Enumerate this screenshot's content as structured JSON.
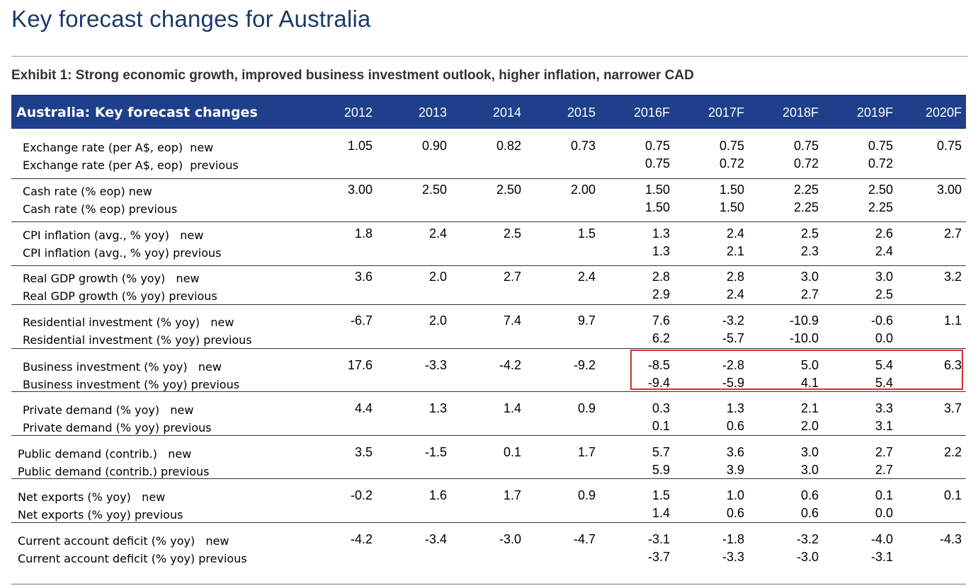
{
  "page_title": "Key forecast changes for Australia",
  "exhibit_title": "Exhibit 1: Strong economic growth, improved business investment outlook, higher inflation, narrower CAD",
  "table": {
    "header_label": "Australia: Key forecast changes",
    "years": [
      "2012",
      "2013",
      "2014",
      "2015",
      "2016F",
      "2017F",
      "2018F",
      "2019F",
      "2020F"
    ],
    "groups": [
      {
        "new_label": "Exchange rate (per A$, eop)  new",
        "prev_label": "Exchange rate (per A$, eop)  previous",
        "new": [
          "1.05",
          "0.90",
          "0.82",
          "0.73",
          "0.75",
          "0.75",
          "0.75",
          "0.75",
          "0.75"
        ],
        "prev": [
          "",
          "",
          "",
          "",
          "0.75",
          "0.72",
          "0.72",
          "0.72",
          ""
        ]
      },
      {
        "new_label": "Cash rate (% eop) new",
        "prev_label": "Cash rate (% eop) previous",
        "new": [
          "3.00",
          "2.50",
          "2.50",
          "2.00",
          "1.50",
          "1.50",
          "2.25",
          "2.50",
          "3.00"
        ],
        "prev": [
          "",
          "",
          "",
          "",
          "1.50",
          "1.50",
          "2.25",
          "2.25",
          ""
        ]
      },
      {
        "new_label": "CPI inflation (avg., % yoy)   new",
        "prev_label": "CPI inflation (avg., % yoy) previous",
        "new": [
          "1.8",
          "2.4",
          "2.5",
          "1.5",
          "1.3",
          "2.4",
          "2.5",
          "2.6",
          "2.7"
        ],
        "prev": [
          "",
          "",
          "",
          "",
          "1.3",
          "2.1",
          "2.3",
          "2.4",
          ""
        ]
      },
      {
        "new_label": "Real GDP growth (% yoy)   new",
        "prev_label": "Real GDP growth (% yoy) previous",
        "new": [
          "3.6",
          "2.0",
          "2.7",
          "2.4",
          "2.8",
          "2.8",
          "3.0",
          "3.0",
          "3.2"
        ],
        "prev": [
          "",
          "",
          "",
          "",
          "2.9",
          "2.4",
          "2.7",
          "2.5",
          ""
        ]
      },
      {
        "new_label": "Residential investment (% yoy)   new",
        "prev_label": "Residential investment (% yoy) previous",
        "new": [
          "-6.7",
          "2.0",
          "7.4",
          "9.7",
          "7.6",
          "-3.2",
          "-10.9",
          "-0.6",
          "1.1"
        ],
        "prev": [
          "",
          "",
          "",
          "",
          "6.2",
          "-5.7",
          "-10.0",
          "0.0",
          ""
        ]
      },
      {
        "new_label": "Business investment (% yoy)   new",
        "prev_label": "Business investment (% yoy) previous",
        "new": [
          "17.6",
          "-3.3",
          "-4.2",
          "-9.2",
          "-8.5",
          "-2.8",
          "5.0",
          "5.4",
          "6.3"
        ],
        "prev": [
          "",
          "",
          "",
          "",
          "-9.4",
          "-5.9",
          "4.1",
          "5.4",
          ""
        ]
      },
      {
        "new_label": "Private demand (% yoy)   new",
        "prev_label": "Private demand (% yoy) previous",
        "new": [
          "4.4",
          "1.3",
          "1.4",
          "0.9",
          "0.3",
          "1.3",
          "2.1",
          "3.3",
          "3.7"
        ],
        "prev": [
          "",
          "",
          "",
          "",
          "0.1",
          "0.6",
          "2.0",
          "3.1",
          ""
        ]
      },
      {
        "new_label": "Public demand (contrib.)   new",
        "prev_label": "Public demand (contrib.) previous",
        "new": [
          "3.5",
          "-1.5",
          "0.1",
          "1.7",
          "5.7",
          "3.6",
          "3.0",
          "2.7",
          "2.2"
        ],
        "prev": [
          "",
          "",
          "",
          "",
          "5.9",
          "3.9",
          "3.0",
          "2.7",
          ""
        ]
      },
      {
        "new_label": "Net exports (% yoy)   new",
        "prev_label": "Net exports (% yoy) previous",
        "new": [
          "-0.2",
          "1.6",
          "1.7",
          "0.9",
          "1.5",
          "1.0",
          "0.6",
          "0.1",
          "0.1"
        ],
        "prev": [
          "",
          "",
          "",
          "",
          "1.4",
          "0.6",
          "0.6",
          "0.0",
          ""
        ]
      },
      {
        "new_label": "Current account deficit (% yoy)   new",
        "prev_label": "Current account deficit (% yoy) previous",
        "new": [
          "-4.2",
          "-3.4",
          "-3.0",
          "-4.7",
          "-3.1",
          "-1.8",
          "-3.2",
          "-4.0",
          "-4.3"
        ],
        "prev": [
          "",
          "",
          "",
          "",
          "-3.7",
          "-3.3",
          "-3.0",
          "-3.1",
          ""
        ]
      }
    ]
  },
  "colors": {
    "header_bg": "#1e3f8a",
    "title_color": "#1b3a6b",
    "highlight_border": "#d62f2f"
  }
}
